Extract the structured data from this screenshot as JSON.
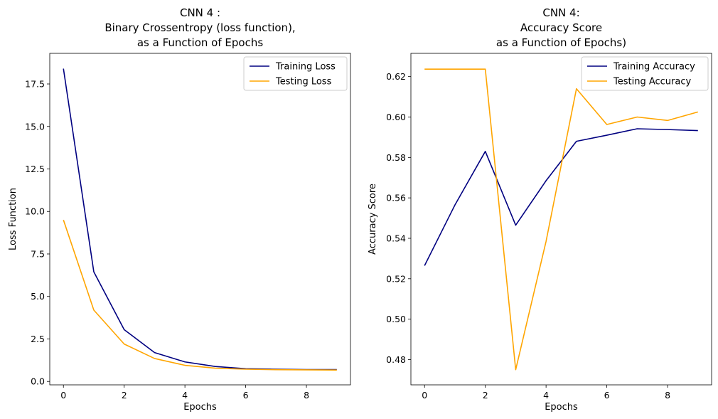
{
  "colors": {
    "training": "#000080",
    "testing": "#ffa500"
  },
  "chart_data": [
    {
      "type": "line",
      "title_lines": [
        "CNN 4 :",
        "Binary Crossentropy (loss function),",
        "as a Function of Epochs"
      ],
      "xlabel": "Epochs",
      "ylabel": "Loss Function",
      "xlim": [
        -0.45,
        9.45
      ],
      "ylim": [
        -0.2,
        19.3
      ],
      "xticks": [
        0,
        2,
        4,
        6,
        8
      ],
      "xtick_labels": [
        "0",
        "2",
        "4",
        "6",
        "8"
      ],
      "yticks": [
        0.0,
        2.5,
        5.0,
        7.5,
        10.0,
        12.5,
        15.0,
        17.5
      ],
      "ytick_labels": [
        "0.0",
        "2.5",
        "5.0",
        "7.5",
        "10.0",
        "12.5",
        "15.0",
        "17.5"
      ],
      "grid": false,
      "legend_position": "upper right",
      "x": [
        0,
        1,
        2,
        3,
        4,
        5,
        6,
        7,
        8,
        9
      ],
      "series": [
        {
          "name": "Training Loss",
          "color": "#000080",
          "values": [
            18.4,
            6.45,
            3.05,
            1.7,
            1.15,
            0.88,
            0.75,
            0.72,
            0.7,
            0.7
          ]
        },
        {
          "name": "Testing Loss",
          "color": "#ffa500",
          "values": [
            9.5,
            4.2,
            2.2,
            1.35,
            0.95,
            0.78,
            0.72,
            0.69,
            0.68,
            0.67
          ]
        }
      ]
    },
    {
      "type": "line",
      "title_lines": [
        "CNN 4:",
        "Accuracy Score",
        "as a Function of Epochs)"
      ],
      "xlabel": "Epochs",
      "ylabel": "Accuracy Score",
      "xlim": [
        -0.45,
        9.45
      ],
      "ylim": [
        0.4675,
        0.6315
      ],
      "xticks": [
        0,
        2,
        4,
        6,
        8
      ],
      "xtick_labels": [
        "0",
        "2",
        "4",
        "6",
        "8"
      ],
      "yticks": [
        0.48,
        0.5,
        0.52,
        0.54,
        0.56,
        0.58,
        0.6,
        0.62
      ],
      "ytick_labels": [
        "0.48",
        "0.50",
        "0.52",
        "0.54",
        "0.56",
        "0.58",
        "0.60",
        "0.62"
      ],
      "grid": false,
      "legend_position": "upper right",
      "x": [
        0,
        1,
        2,
        3,
        4,
        5,
        6,
        7,
        8,
        9
      ],
      "series": [
        {
          "name": "Training Accuracy",
          "color": "#000080",
          "values": [
            0.5265,
            0.5565,
            0.583,
            0.5465,
            0.5685,
            0.588,
            0.591,
            0.5942,
            0.5938,
            0.5933
          ]
        },
        {
          "name": "Testing Accuracy",
          "color": "#ffa500",
          "values": [
            0.6237,
            0.6237,
            0.6237,
            0.475,
            0.5385,
            0.614,
            0.5963,
            0.6,
            0.5983,
            0.6025
          ]
        }
      ]
    }
  ]
}
